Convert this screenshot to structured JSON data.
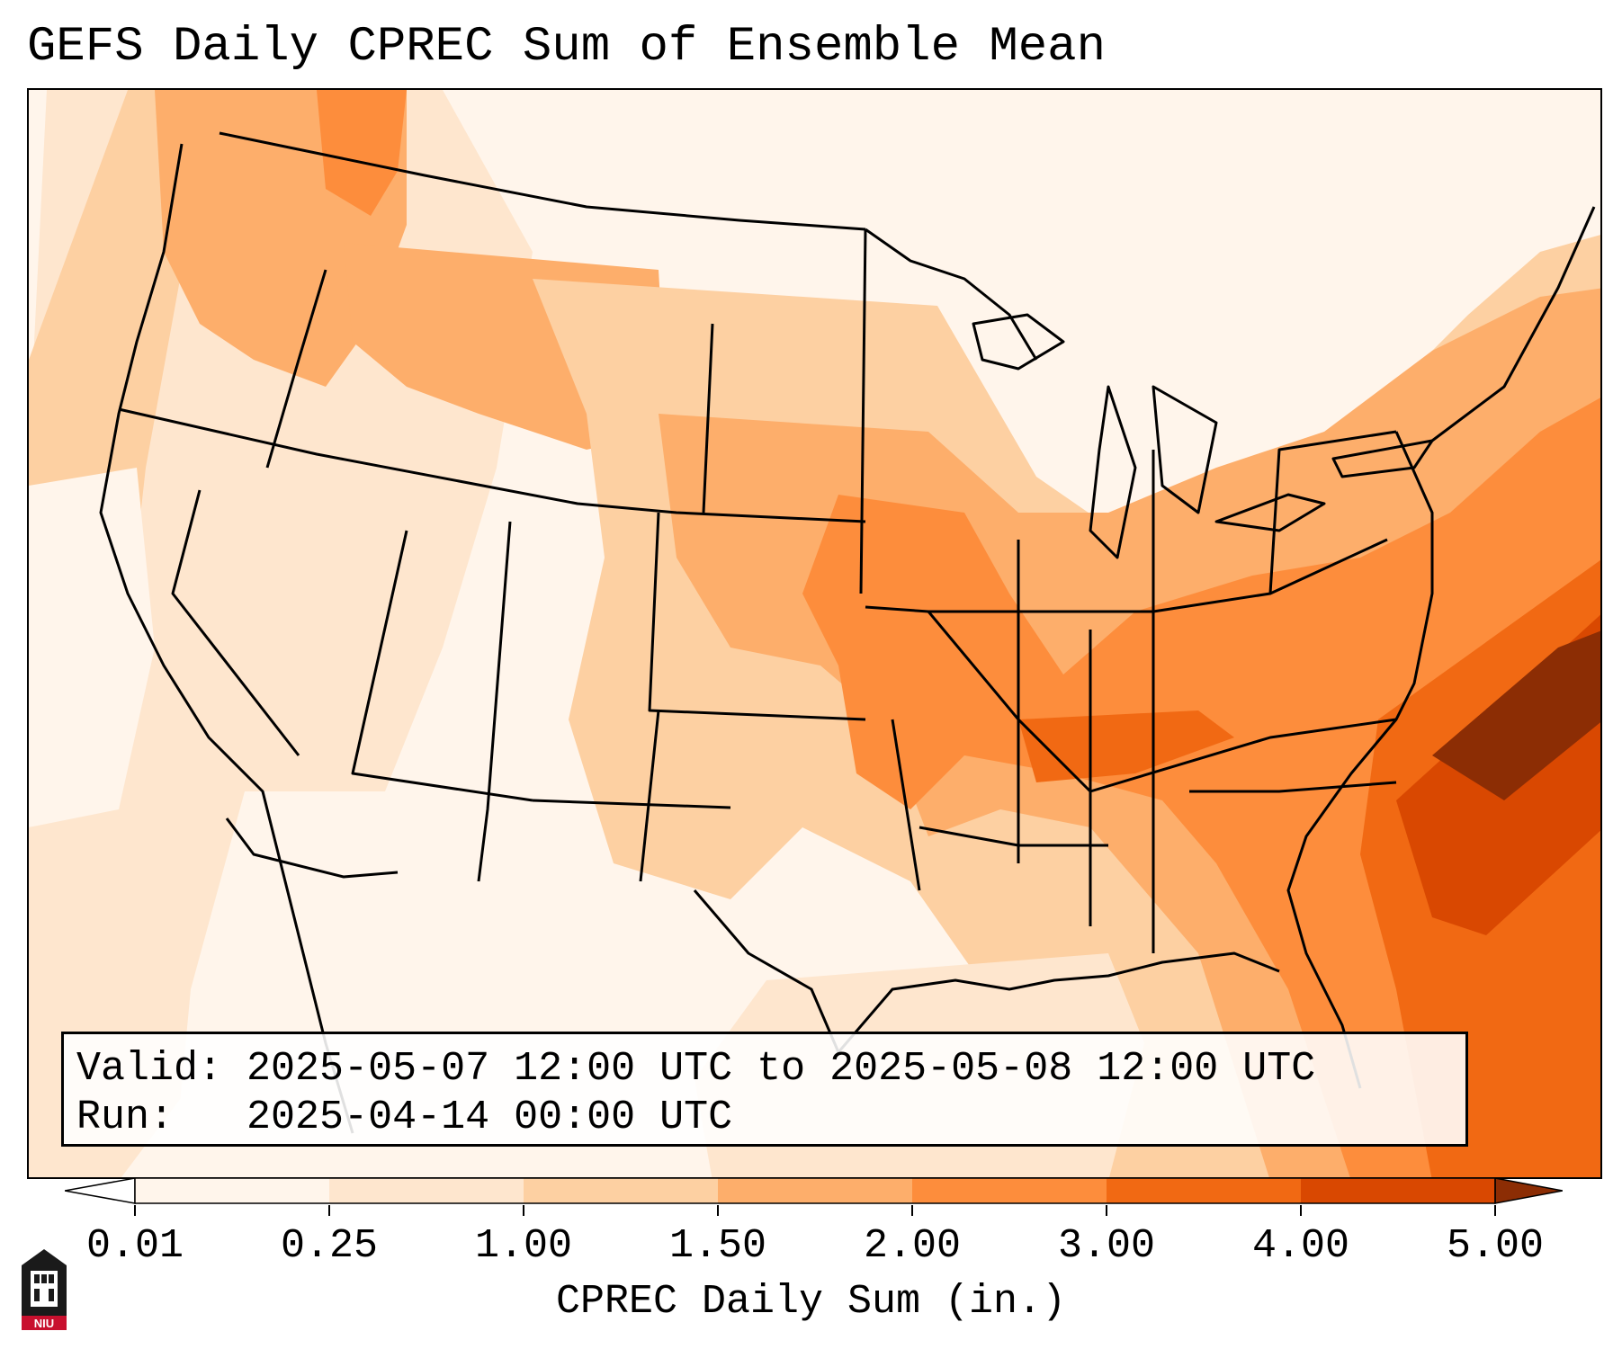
{
  "title": "GEFS Daily CPREC Sum of Ensemble Mean",
  "info": {
    "valid_label": "Valid:",
    "valid_value": "2025-05-07 12:00 UTC to 2025-05-08 12:00 UTC",
    "run_label": "Run:",
    "run_value": "2025-04-14 00:00 UTC"
  },
  "colorbar": {
    "label": "CPREC Daily Sum (in.)",
    "ticks": [
      "0.01",
      "0.25",
      "1.00",
      "1.50",
      "2.00",
      "3.00",
      "4.00",
      "5.00"
    ],
    "colors": [
      "#fff5eb",
      "#fee6ce",
      "#fdd0a2",
      "#fdae6b",
      "#fd8d3c",
      "#f16913",
      "#d94801",
      "#8c2d04"
    ],
    "extend": "both"
  },
  "logo": {
    "text": "NIU",
    "colors": [
      "#c8102e",
      "#000000"
    ]
  }
}
